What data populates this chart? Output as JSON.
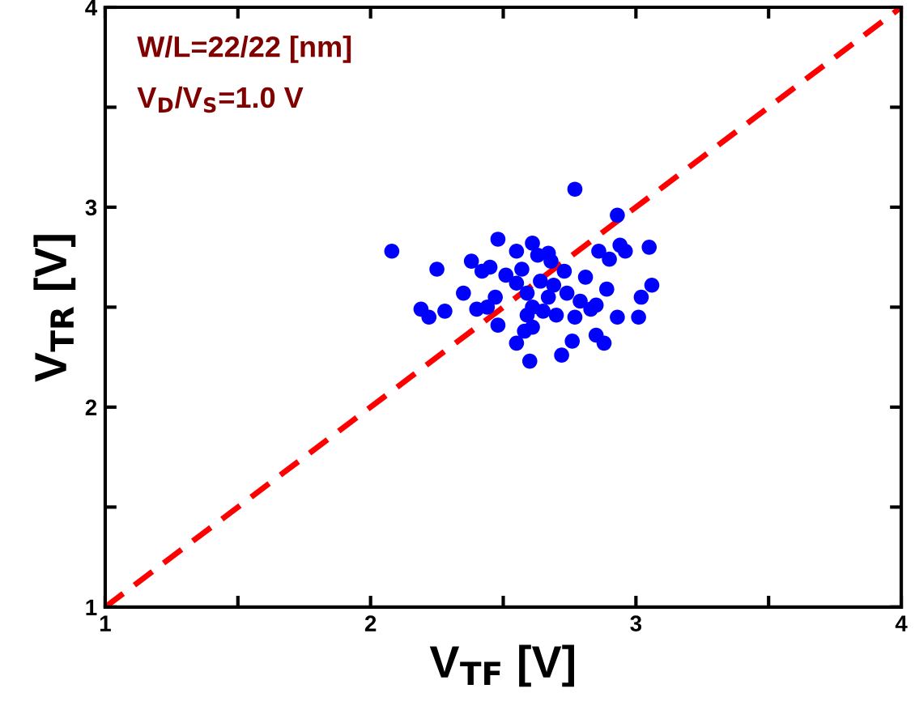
{
  "chart_data": {
    "type": "scatter",
    "xlabel": "V$_{TF}$ [V]",
    "ylabel": "V$_{TR}$ [V]",
    "annotations": [
      "W/L=22/22 [nm]",
      "V$_{D}$/V$_{S}$=1.0 V"
    ],
    "xlim": [
      1,
      4
    ],
    "ylim": [
      1,
      4
    ],
    "xticks": [
      1,
      {
        "value": 1.5,
        "label": null
      },
      2,
      {
        "value": 2.5,
        "label": null
      },
      3,
      {
        "value": 3.5,
        "label": null
      },
      4
    ],
    "yticks": [
      1,
      {
        "value": 1.5,
        "label": null
      },
      2,
      {
        "value": 2.5,
        "label": null
      },
      3,
      {
        "value": 3.5,
        "label": null
      },
      4
    ],
    "grid": false,
    "legend": false,
    "series": [
      {
        "type": "line",
        "color": "#ff0000",
        "line_style": "dashed",
        "marker": "none",
        "x": [
          1,
          4
        ],
        "values": [
          1,
          4
        ]
      },
      {
        "color": "#0000ff",
        "marker": "circle",
        "x": [
          2.77,
          2.08,
          2.93,
          2.48,
          2.61,
          2.55,
          2.67,
          2.86,
          2.94,
          2.96,
          3.05,
          2.9,
          2.25,
          2.38,
          2.42,
          2.45,
          2.63,
          2.68,
          2.57,
          2.51,
          2.73,
          2.81,
          2.55,
          2.64,
          2.69,
          3.06,
          2.89,
          3.02,
          2.35,
          2.47,
          2.59,
          2.67,
          2.74,
          2.79,
          2.85,
          2.83,
          2.19,
          2.22,
          2.28,
          2.4,
          2.44,
          2.61,
          2.65,
          2.59,
          2.7,
          2.77,
          2.93,
          3.01,
          2.48,
          2.61,
          2.58,
          2.85,
          2.88,
          2.55,
          2.76,
          2.72,
          2.6
        ],
        "values": [
          3.09,
          2.78,
          2.96,
          2.84,
          2.82,
          2.78,
          2.77,
          2.78,
          2.81,
          2.78,
          2.8,
          2.74,
          2.69,
          2.73,
          2.68,
          2.7,
          2.76,
          2.73,
          2.69,
          2.66,
          2.68,
          2.65,
          2.62,
          2.63,
          2.61,
          2.61,
          2.59,
          2.55,
          2.57,
          2.55,
          2.57,
          2.55,
          2.57,
          2.53,
          2.51,
          2.49,
          2.49,
          2.45,
          2.48,
          2.49,
          2.5,
          2.5,
          2.48,
          2.46,
          2.46,
          2.45,
          2.45,
          2.45,
          2.41,
          2.4,
          2.38,
          2.36,
          2.32,
          2.32,
          2.33,
          2.26,
          2.23
        ]
      }
    ]
  }
}
